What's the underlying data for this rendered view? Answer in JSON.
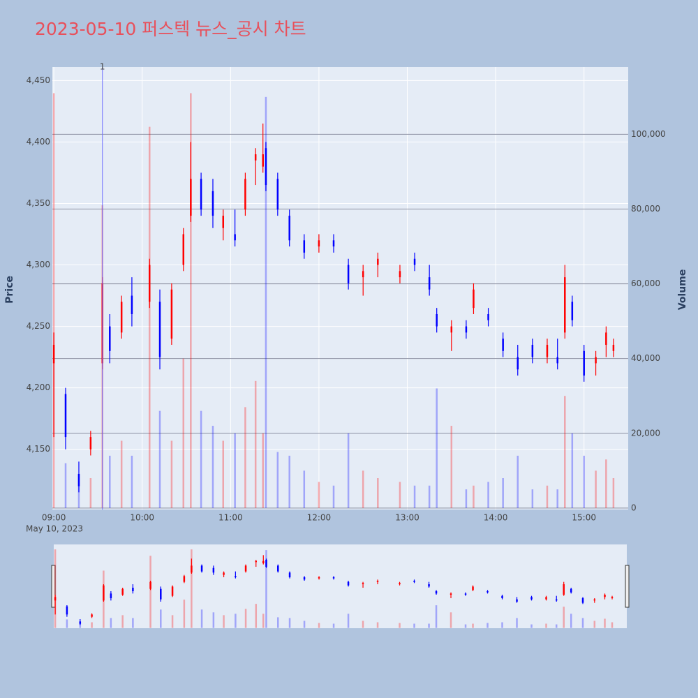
{
  "chart_data": {
    "type": "candlestick",
    "title": "2023-05-10 퍼스텍 뉴스_공시 차트",
    "ylabel": "Price",
    "y2label": "Volume",
    "x_date_label": "May 10, 2023",
    "increasing_color": "#ff0000",
    "decreasing_color": "#0000ff",
    "grid": true,
    "range_slider": true,
    "x": [
      "09:00",
      "09:08",
      "09:17",
      "09:25",
      "09:33",
      "09:38",
      "09:46",
      "09:53",
      "10:05",
      "10:12",
      "10:20",
      "10:28",
      "10:33",
      "10:40",
      "10:48",
      "10:55",
      "11:03",
      "11:10",
      "11:17",
      "11:22",
      "11:24",
      "11:32",
      "11:40",
      "11:50",
      "12:00",
      "12:10",
      "12:20",
      "12:30",
      "12:40",
      "12:55",
      "13:05",
      "13:15",
      "13:20",
      "13:30",
      "13:40",
      "13:45",
      "13:55",
      "14:05",
      "14:15",
      "14:25",
      "14:35",
      "14:42",
      "14:47",
      "14:52",
      "15:00",
      "15:08",
      "15:15",
      "15:20"
    ],
    "open": [
      4220,
      4195,
      4130,
      4150,
      4220,
      4250,
      4245,
      4275,
      4270,
      4270,
      4240,
      4300,
      4340,
      4370,
      4360,
      4330,
      4325,
      4345,
      4385,
      4380,
      4395,
      4370,
      4340,
      4320,
      4315,
      4320,
      4300,
      4290,
      4300,
      4290,
      4305,
      4290,
      4260,
      4245,
      4250,
      4265,
      4260,
      4240,
      4225,
      4235,
      4225,
      4225,
      4245,
      4270,
      4230,
      4220,
      4235,
      4230
    ],
    "high": [
      4245,
      4200,
      4140,
      4165,
      4290,
      4260,
      4275,
      4290,
      4305,
      4280,
      4285,
      4330,
      4400,
      4375,
      4370,
      4345,
      4345,
      4375,
      4395,
      4415,
      4400,
      4375,
      4345,
      4325,
      4325,
      4325,
      4305,
      4300,
      4310,
      4300,
      4310,
      4300,
      4265,
      4255,
      4255,
      4285,
      4265,
      4245,
      4235,
      4240,
      4240,
      4240,
      4300,
      4275,
      4235,
      4230,
      4250,
      4240
    ],
    "low": [
      4160,
      4150,
      4115,
      4145,
      4215,
      4220,
      4240,
      4250,
      4265,
      4215,
      4235,
      4295,
      4335,
      4340,
      4330,
      4320,
      4315,
      4340,
      4365,
      4375,
      4360,
      4340,
      4315,
      4305,
      4310,
      4310,
      4280,
      4275,
      4290,
      4285,
      4295,
      4275,
      4245,
      4230,
      4240,
      4260,
      4250,
      4225,
      4210,
      4220,
      4220,
      4215,
      4240,
      4250,
      4205,
      4210,
      4225,
      4225
    ],
    "close": [
      4235,
      4160,
      4120,
      4160,
      4285,
      4230,
      4270,
      4260,
      4300,
      4225,
      4280,
      4325,
      4370,
      4345,
      4340,
      4340,
      4320,
      4370,
      4390,
      4390,
      4365,
      4345,
      4320,
      4310,
      4320,
      4315,
      4285,
      4295,
      4305,
      4295,
      4300,
      4280,
      4250,
      4250,
      4245,
      4280,
      4255,
      4230,
      4215,
      4225,
      4235,
      4220,
      4290,
      4255,
      4210,
      4225,
      4245,
      4235
    ],
    "volume": [
      111000,
      12000,
      9000,
      8000,
      81000,
      14000,
      18000,
      14000,
      102000,
      26000,
      18000,
      40000,
      111000,
      26000,
      22000,
      18000,
      20000,
      27000,
      34000,
      20000,
      110000,
      15000,
      14000,
      10000,
      7000,
      6000,
      20000,
      10000,
      8000,
      7000,
      6000,
      6000,
      32000,
      22000,
      5000,
      6000,
      7000,
      8000,
      14000,
      5000,
      6000,
      5000,
      30000,
      20000,
      14000,
      10000,
      13000,
      8000
    ],
    "xlim": [
      "08:59",
      "15:30"
    ],
    "xticks": [
      "09:00",
      "10:00",
      "11:00",
      "12:00",
      "13:00",
      "14:00",
      "15:00"
    ],
    "ylim": [
      4101,
      4461
    ],
    "yticks": [
      {
        "value": 4150,
        "label": "4,150"
      },
      {
        "value": 4200,
        "label": "4,200"
      },
      {
        "value": 4250,
        "label": "4,250"
      },
      {
        "value": 4300,
        "label": "4,300"
      },
      {
        "value": 4350,
        "label": "4,350"
      },
      {
        "value": 4400,
        "label": "4,400"
      },
      {
        "value": 4450,
        "label": "4,450"
      }
    ],
    "y2lim": [
      -400,
      118000
    ],
    "y2ticks": [
      0,
      {
        "value": 20000,
        "label": "20,000"
      },
      {
        "value": 40000,
        "label": "40,000"
      },
      {
        "value": 60000,
        "label": "60,000"
      },
      {
        "value": 80000,
        "label": "80,000"
      },
      {
        "value": 100000,
        "label": "100,000"
      }
    ],
    "annotations": [
      {
        "x": "09:33",
        "text": "1"
      }
    ]
  }
}
